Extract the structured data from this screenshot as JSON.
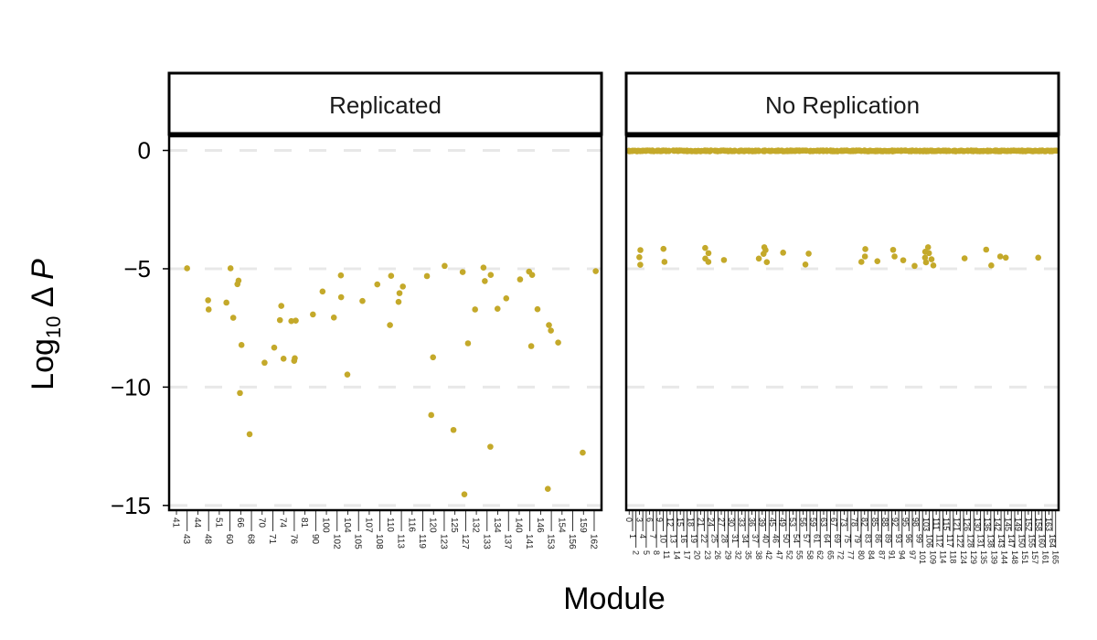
{
  "chart_data": {
    "type": "scatter",
    "xlabel": "Module",
    "ylabel_main": "Log",
    "ylabel_sub": "10",
    "ylabel_rest": " Δ ",
    "ylabel_var": "P",
    "ylim": [
      -15.2,
      0.6
    ],
    "yticks": [
      0,
      -5,
      -10,
      -15
    ],
    "ytick_labels": [
      "0",
      "−5",
      "−10",
      "−15"
    ],
    "grid": "dashed horizontal at major y ticks",
    "point_color": "#C4A92A",
    "grid_color": "#E8E8E8",
    "panels": [
      {
        "strip": "Replicated",
        "categories": [
          "41",
          "43",
          "44",
          "48",
          "51",
          "60",
          "66",
          "68",
          "70",
          "71",
          "74",
          "76",
          "81",
          "90",
          "100",
          "102",
          "104",
          "105",
          "107",
          "108",
          "110",
          "113",
          "116",
          "119",
          "120",
          "123",
          "125",
          "127",
          "132",
          "133",
          "134",
          "137",
          "140",
          "141",
          "146",
          "153",
          "154",
          "156",
          "159",
          "162"
        ],
        "points": [
          [
            "43",
            -4.98
          ],
          [
            "60",
            -4.98
          ],
          [
            "66",
            -5.65
          ],
          [
            "66",
            -5.5
          ],
          [
            "48",
            -6.33
          ],
          [
            "48",
            -6.72
          ],
          [
            "60",
            -6.43
          ],
          [
            "60",
            -7.07
          ],
          [
            "66",
            -8.22
          ],
          [
            "66",
            -10.25
          ],
          [
            "68",
            -11.99
          ],
          [
            "70",
            -8.97
          ],
          [
            "71",
            -8.33
          ],
          [
            "74",
            -7.17
          ],
          [
            "74",
            -8.8
          ],
          [
            "74",
            -6.57
          ],
          [
            "76",
            -7.19
          ],
          [
            "76",
            -7.21
          ],
          [
            "76",
            -8.78
          ],
          [
            "76",
            -8.89
          ],
          [
            "90",
            -6.93
          ],
          [
            "100",
            -5.96
          ],
          [
            "102",
            -5.28
          ],
          [
            "102",
            -6.2
          ],
          [
            "102",
            -7.06
          ],
          [
            "104",
            -9.47
          ],
          [
            "105",
            -6.36
          ],
          [
            "108",
            -5.66
          ],
          [
            "110",
            -7.38
          ],
          [
            "110",
            -5.3
          ],
          [
            "113",
            -5.75
          ],
          [
            "113",
            -6.03
          ],
          [
            "113",
            -6.4
          ],
          [
            "119",
            -5.31
          ],
          [
            "120",
            -8.74
          ],
          [
            "120",
            -11.18
          ],
          [
            "123",
            -4.88
          ],
          [
            "125",
            -11.81
          ],
          [
            "127",
            -5.14
          ],
          [
            "127",
            -8.15
          ],
          [
            "127",
            -14.53
          ],
          [
            "132",
            -6.72
          ],
          [
            "133",
            -4.95
          ],
          [
            "133",
            -5.26
          ],
          [
            "133",
            -5.52
          ],
          [
            "133",
            -12.52
          ],
          [
            "134",
            -6.69
          ],
          [
            "137",
            -6.25
          ],
          [
            "140",
            -5.45
          ],
          [
            "141",
            -5.12
          ],
          [
            "141",
            -5.26
          ],
          [
            "141",
            -8.27
          ],
          [
            "146",
            -6.71
          ],
          [
            "153",
            -7.38
          ],
          [
            "153",
            -7.61
          ],
          [
            "153",
            -14.3
          ],
          [
            "154",
            -8.12
          ],
          [
            "159",
            -12.77
          ],
          [
            "162",
            -5.1
          ]
        ]
      },
      {
        "strip": "No Replication",
        "categories": [
          "0",
          "1",
          "2",
          "3",
          "4",
          "5",
          "6",
          "7",
          "8",
          "9",
          "10",
          "11",
          "12",
          "13",
          "14",
          "15",
          "16",
          "17",
          "18",
          "19",
          "20",
          "21",
          "22",
          "23",
          "24",
          "25",
          "26",
          "27",
          "28",
          "29",
          "30",
          "31",
          "32",
          "33",
          "34",
          "35",
          "36",
          "37",
          "38",
          "39",
          "40",
          "42",
          "45",
          "46",
          "47",
          "49",
          "50",
          "52",
          "53",
          "54",
          "55",
          "56",
          "57",
          "58",
          "59",
          "61",
          "62",
          "63",
          "64",
          "65",
          "67",
          "69",
          "72",
          "73",
          "75",
          "77",
          "78",
          "79",
          "80",
          "82",
          "83",
          "84",
          "85",
          "86",
          "87",
          "88",
          "89",
          "91",
          "92",
          "93",
          "94",
          "95",
          "96",
          "97",
          "98",
          "99",
          "101",
          "103",
          "106",
          "109",
          "111",
          "112",
          "114",
          "115",
          "117",
          "118",
          "121",
          "122",
          "124",
          "126",
          "128",
          "129",
          "130",
          "131",
          "135",
          "136",
          "138",
          "139",
          "142",
          "143",
          "144",
          "145",
          "147",
          "148",
          "149",
          "150",
          "151",
          "152",
          "155",
          "157",
          "158",
          "160",
          "161",
          "163",
          "164",
          "165"
        ],
        "all_modules_value": 0,
        "points": [
          [
            "3",
            -4.21
          ],
          [
            "3",
            -4.51
          ],
          [
            "3",
            -4.83
          ],
          [
            "10",
            -4.16
          ],
          [
            "10",
            -4.71
          ],
          [
            "22",
            -4.12
          ],
          [
            "22",
            -4.57
          ],
          [
            "23",
            -4.34
          ],
          [
            "23",
            -4.71
          ],
          [
            "28",
            -4.63
          ],
          [
            "38",
            -4.57
          ],
          [
            "39",
            -4.37
          ],
          [
            "40",
            -4.09
          ],
          [
            "40",
            -4.21
          ],
          [
            "40",
            -4.72
          ],
          [
            "49",
            -4.32
          ],
          [
            "57",
            -4.82
          ],
          [
            "58",
            -4.36
          ],
          [
            "80",
            -4.71
          ],
          [
            "82",
            -4.17
          ],
          [
            "82",
            -4.48
          ],
          [
            "86",
            -4.68
          ],
          [
            "91",
            -4.2
          ],
          [
            "92",
            -4.48
          ],
          [
            "94",
            -4.64
          ],
          [
            "98",
            -4.88
          ],
          [
            "103",
            -4.28
          ],
          [
            "103",
            -4.53
          ],
          [
            "103",
            -4.73
          ],
          [
            "106",
            -4.09
          ],
          [
            "106",
            -4.34
          ],
          [
            "109",
            -4.86
          ],
          [
            "109",
            -4.6
          ],
          [
            "124",
            -4.56
          ],
          [
            "136",
            -4.19
          ],
          [
            "138",
            -4.86
          ],
          [
            "143",
            -4.48
          ],
          [
            "144",
            -4.53
          ],
          [
            "158",
            -4.53
          ]
        ]
      }
    ]
  }
}
